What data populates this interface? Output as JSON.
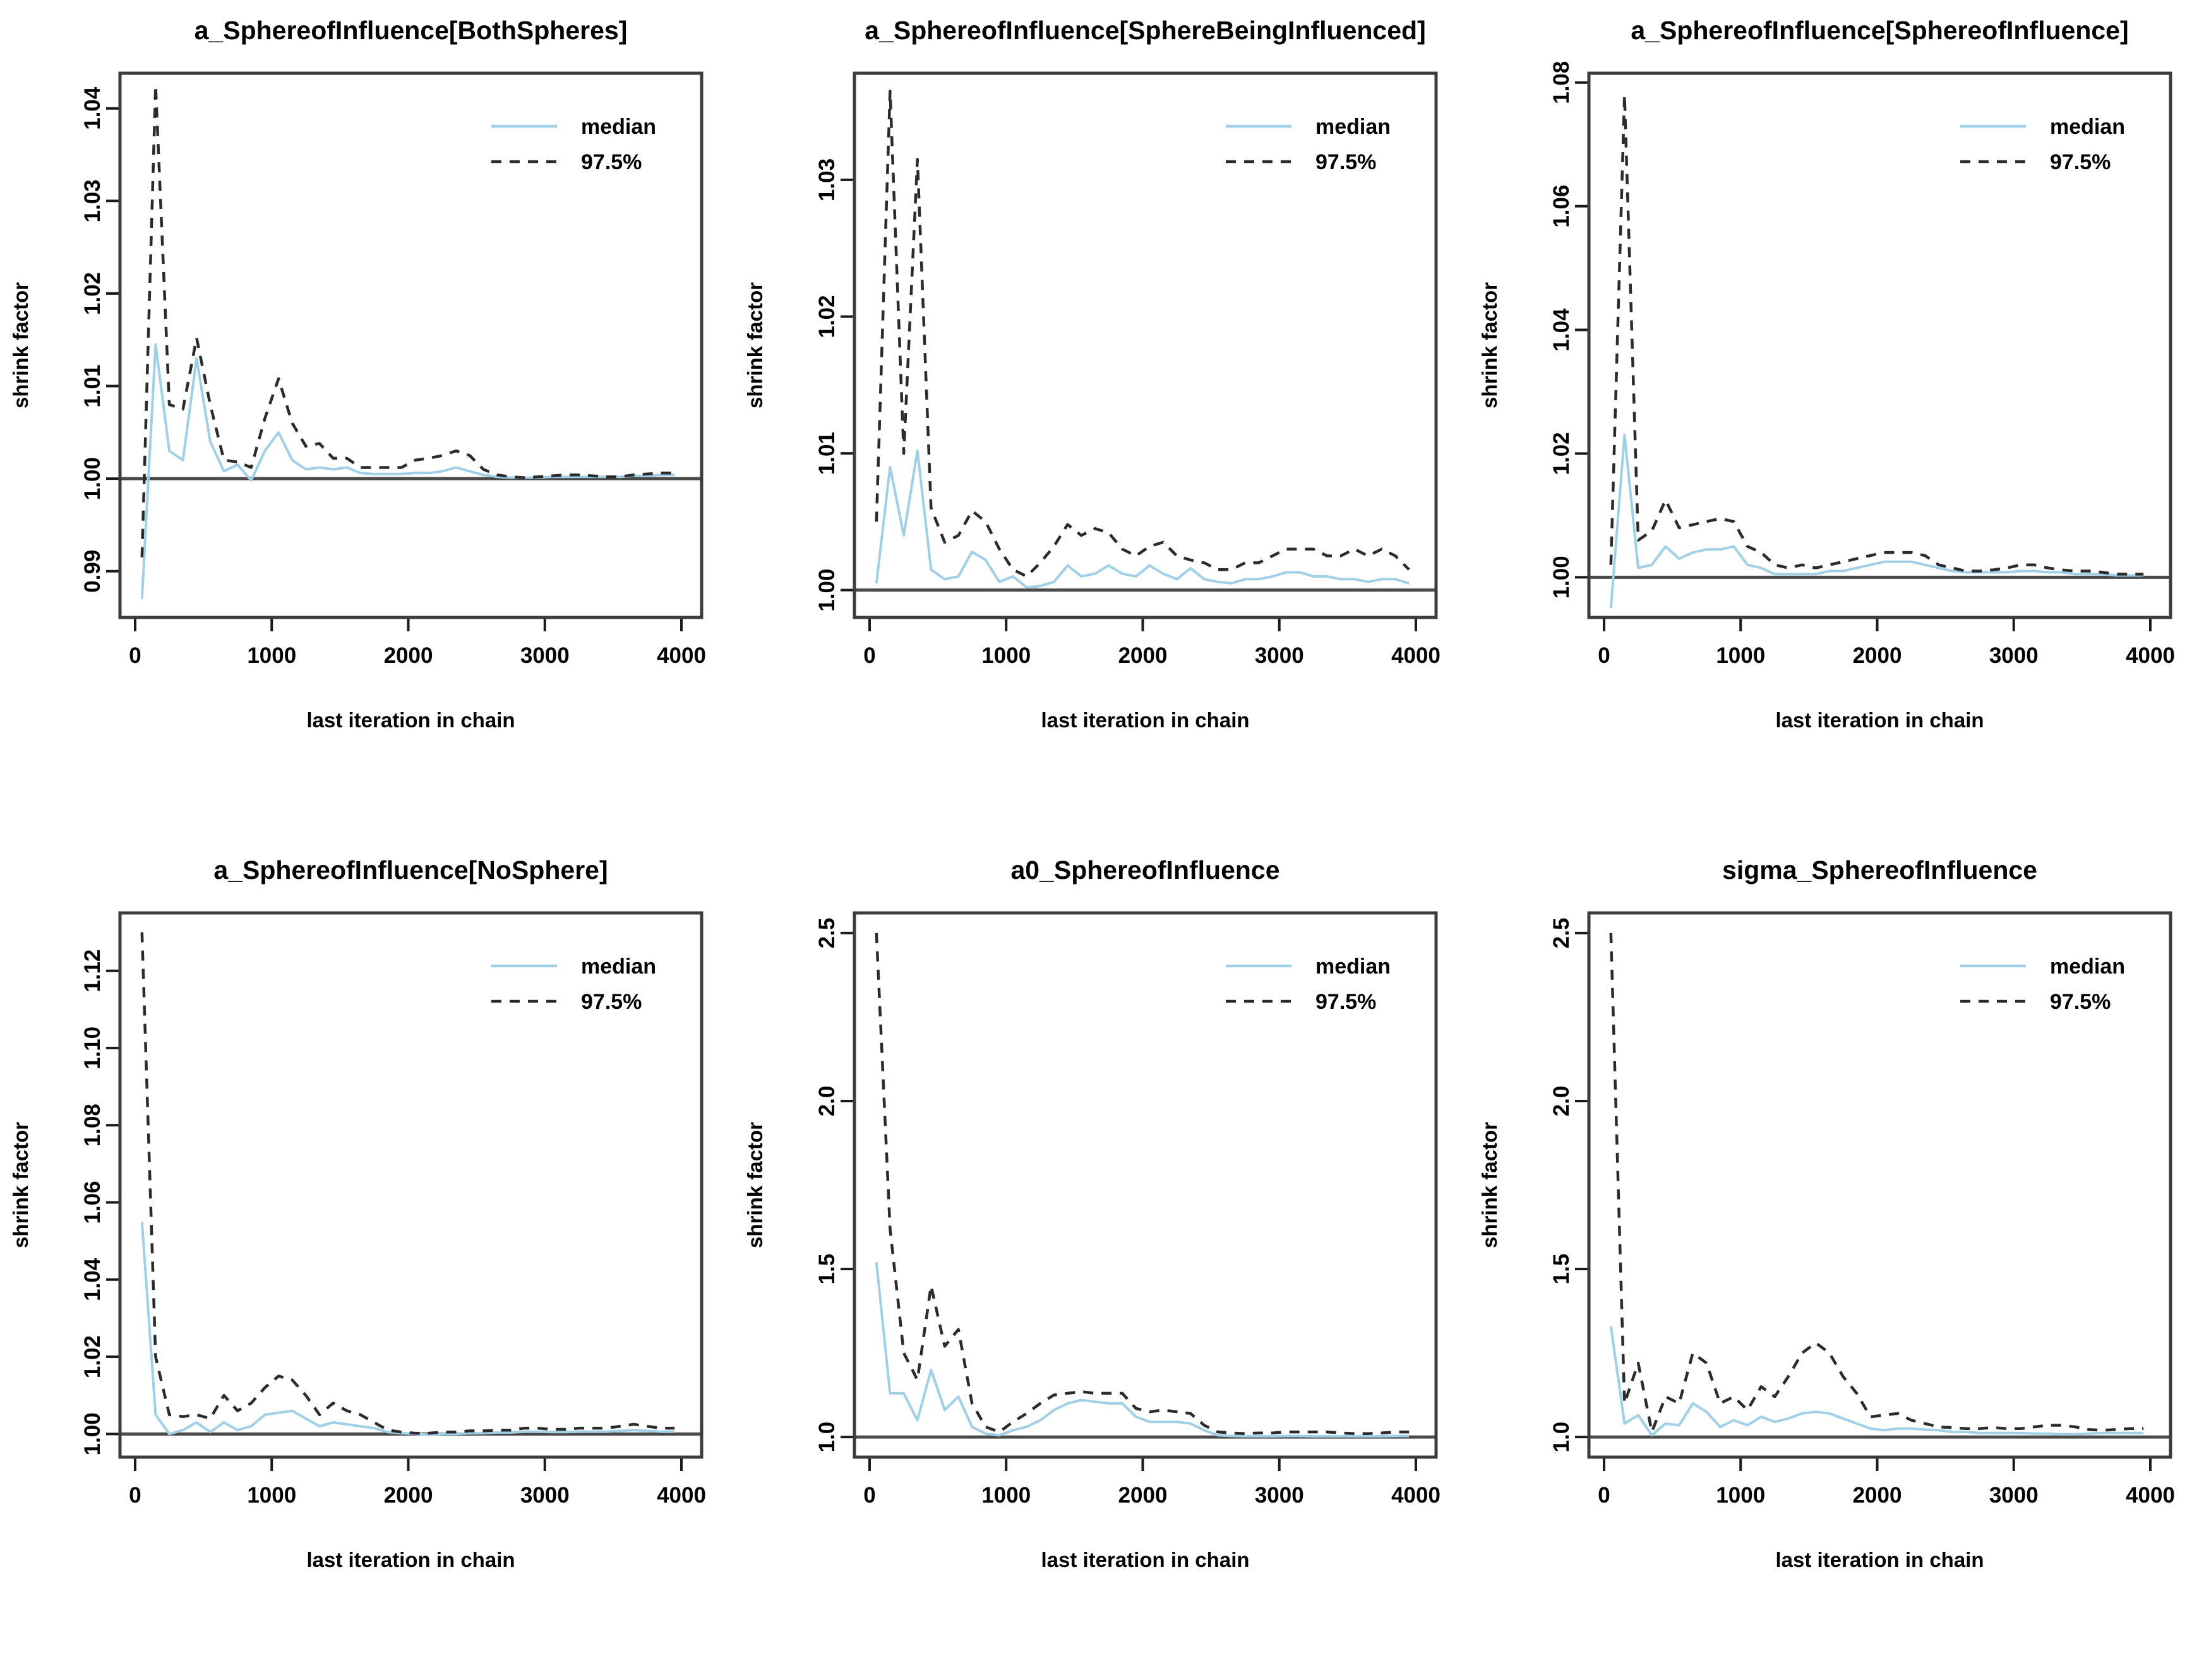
{
  "figure": {
    "background": "#ffffff",
    "x_label": "last iteration in chain",
    "y_label": "shrink factor",
    "colors": {
      "median_line": "#A0D0E8",
      "q975_line": "#2b2b2b",
      "reference_line": "#4a4a4a",
      "frame": "#3c3c3c",
      "tick": "#1a1a1a",
      "text": "#000000"
    },
    "legend": {
      "entries": [
        {
          "label": "median",
          "style": "solid"
        },
        {
          "label": "97.5%",
          "style": "dashed"
        }
      ],
      "position": "top-right"
    }
  },
  "chart_data": [
    {
      "type": "line",
      "title": "a_SphereofInfluence[BothSpheres]",
      "xlabel": "last iteration in chain",
      "ylabel": "shrink factor",
      "xlim": [
        0,
        4000
      ],
      "ylim": [
        0.985,
        1.0438
      ],
      "x_ticks": [
        0,
        1000,
        2000,
        3000,
        4000
      ],
      "x_tick_labels": [
        "0",
        "1000",
        "2000",
        "3000",
        "4000"
      ],
      "y_tick_values": [
        0.99,
        1.0,
        1.01,
        1.02,
        1.03,
        1.04
      ],
      "y_tick_labels": [
        "0.99",
        "1.00",
        "1.01",
        "1.02",
        "1.03",
        "1.04"
      ],
      "reference_y": 1.0,
      "grid": false,
      "legend_position": "top-right",
      "x": [
        50,
        150,
        250,
        350,
        450,
        550,
        650,
        750,
        850,
        950,
        1050,
        1150,
        1250,
        1350,
        1450,
        1550,
        1650,
        1750,
        1850,
        1950,
        2050,
        2150,
        2250,
        2350,
        2450,
        2550,
        2650,
        2750,
        2850,
        2950,
        3050,
        3150,
        3250,
        3350,
        3450,
        3550,
        3650,
        3750,
        3850,
        3950
      ],
      "series": [
        {
          "name": "median",
          "style": "solid",
          "values": [
            0.987,
            1.0145,
            1.003,
            1.002,
            1.013,
            1.004,
            1.0008,
            1.0015,
            0.9998,
            1.003,
            1.005,
            1.002,
            1.001,
            1.0012,
            1.001,
            1.0012,
            1.0006,
            1.0005,
            1.0005,
            1.0005,
            1.0006,
            1.0006,
            1.0008,
            1.0012,
            1.0008,
            1.0004,
            1.0002,
            1.0001,
            1.0001,
            1.0001,
            1.0002,
            1.0002,
            1.0002,
            1.0002,
            1.0002,
            1.0002,
            1.0003,
            1.0003,
            1.0004,
            1.0004
          ]
        },
        {
          "name": "97.5%",
          "style": "dashed",
          "values": [
            0.9915,
            1.0425,
            1.008,
            1.0075,
            1.0152,
            1.008,
            1.002,
            1.0018,
            1.0012,
            1.0065,
            1.0108,
            1.006,
            1.0035,
            1.0038,
            1.0022,
            1.0022,
            1.0012,
            1.0012,
            1.0012,
            1.0012,
            1.002,
            1.0022,
            1.0025,
            1.003,
            1.0025,
            1.001,
            1.0004,
            1.0002,
            1.0001,
            1.0002,
            1.0003,
            1.0004,
            1.0004,
            1.0003,
            1.0002,
            1.0002,
            1.0004,
            1.0005,
            1.0006,
            1.0006
          ]
        }
      ]
    },
    {
      "type": "line",
      "title": "a_SphereofInfluence[SphereBeingInfluenced]",
      "xlabel": "last iteration in chain",
      "ylabel": "shrink factor",
      "xlim": [
        0,
        4000
      ],
      "ylim": [
        0.998,
        1.0378
      ],
      "x_ticks": [
        0,
        1000,
        2000,
        3000,
        4000
      ],
      "x_tick_labels": [
        "0",
        "1000",
        "2000",
        "3000",
        "4000"
      ],
      "y_tick_values": [
        1.0,
        1.01,
        1.02,
        1.03
      ],
      "y_tick_labels": [
        "1.00",
        "1.01",
        "1.02",
        "1.03"
      ],
      "reference_y": 1.0,
      "grid": false,
      "legend_position": "top-right",
      "x": [
        50,
        150,
        250,
        350,
        450,
        550,
        650,
        750,
        850,
        950,
        1050,
        1150,
        1250,
        1350,
        1450,
        1550,
        1650,
        1750,
        1850,
        1950,
        2050,
        2150,
        2250,
        2350,
        2450,
        2550,
        2650,
        2750,
        2850,
        2950,
        3050,
        3150,
        3250,
        3350,
        3450,
        3550,
        3650,
        3750,
        3850,
        3950
      ],
      "series": [
        {
          "name": "median",
          "style": "solid",
          "values": [
            1.0005,
            1.009,
            1.004,
            1.0102,
            1.0015,
            1.0008,
            1.001,
            1.0028,
            1.0022,
            1.0006,
            1.001,
            1.0002,
            1.0003,
            1.0006,
            1.0018,
            1.001,
            1.0012,
            1.0018,
            1.0012,
            1.001,
            1.0018,
            1.0012,
            1.0008,
            1.0016,
            1.0008,
            1.0006,
            1.0005,
            1.0008,
            1.0008,
            1.001,
            1.0013,
            1.0013,
            1.001,
            1.001,
            1.0008,
            1.0008,
            1.0006,
            1.0008,
            1.0008,
            1.0005
          ]
        },
        {
          "name": "97.5%",
          "style": "dashed",
          "values": [
            1.005,
            1.0365,
            1.01,
            1.0315,
            1.006,
            1.0035,
            1.004,
            1.0058,
            1.005,
            1.003,
            1.0015,
            1.001,
            1.002,
            1.0032,
            1.0048,
            1.004,
            1.0045,
            1.0042,
            1.003,
            1.0025,
            1.0032,
            1.0035,
            1.0025,
            1.0022,
            1.002,
            1.0015,
            1.0015,
            1.002,
            1.002,
            1.0025,
            1.003,
            1.003,
            1.003,
            1.0025,
            1.0025,
            1.003,
            1.0025,
            1.003,
            1.0025,
            1.0015
          ]
        }
      ]
    },
    {
      "type": "line",
      "title": "a_SphereofInfluence[SphereofInfluence]",
      "xlabel": "last iteration in chain",
      "ylabel": "shrink factor",
      "xlim": [
        0,
        4000
      ],
      "ylim": [
        0.9935,
        1.0815
      ],
      "x_ticks": [
        0,
        1000,
        2000,
        3000,
        4000
      ],
      "x_tick_labels": [
        "0",
        "1000",
        "2000",
        "3000",
        "4000"
      ],
      "y_tick_values": [
        1.0,
        1.02,
        1.04,
        1.06,
        1.08
      ],
      "y_tick_labels": [
        "1.00",
        "1.02",
        "1.04",
        "1.06",
        "1.08"
      ],
      "reference_y": 1.0,
      "grid": false,
      "legend_position": "top-right",
      "x": [
        50,
        150,
        250,
        350,
        450,
        550,
        650,
        750,
        850,
        950,
        1050,
        1150,
        1250,
        1350,
        1450,
        1550,
        1650,
        1750,
        1850,
        1950,
        2050,
        2150,
        2250,
        2350,
        2450,
        2550,
        2650,
        2750,
        2850,
        2950,
        3050,
        3150,
        3250,
        3350,
        3450,
        3550,
        3650,
        3750,
        3850,
        3950
      ],
      "series": [
        {
          "name": "median",
          "style": "solid",
          "values": [
            0.995,
            1.023,
            1.0015,
            1.002,
            1.005,
            1.003,
            1.004,
            1.0045,
            1.0045,
            1.005,
            1.002,
            1.0015,
            1.0005,
            1.0005,
            1.0005,
            1.0005,
            1.001,
            1.001,
            1.0015,
            1.002,
            1.0025,
            1.0025,
            1.0025,
            1.002,
            1.0015,
            1.001,
            1.0008,
            1.0008,
            1.0008,
            1.0008,
            1.001,
            1.001,
            1.0008,
            1.0008,
            1.0005,
            1.0005,
            1.0005,
            1.0003,
            1.0003,
            1.0003
          ]
        },
        {
          "name": "97.5%",
          "style": "dashed",
          "values": [
            1.002,
            1.078,
            1.006,
            1.0075,
            1.0125,
            1.008,
            1.0085,
            1.009,
            1.0095,
            1.009,
            1.005,
            1.004,
            1.002,
            1.0015,
            1.002,
            1.0015,
            1.002,
            1.0025,
            1.003,
            1.0035,
            1.004,
            1.004,
            1.004,
            1.0035,
            1.002,
            1.0015,
            1.001,
            1.001,
            1.0012,
            1.0015,
            1.002,
            1.002,
            1.0015,
            1.0012,
            1.001,
            1.001,
            1.0008,
            1.0005,
            1.0005,
            1.0005
          ]
        }
      ]
    },
    {
      "type": "line",
      "title": "a_SphereofInfluence[NoSphere]",
      "xlabel": "last iteration in chain",
      "ylabel": "shrink factor",
      "xlim": [
        0,
        4000
      ],
      "ylim": [
        0.994,
        1.135
      ],
      "x_ticks": [
        0,
        1000,
        2000,
        3000,
        4000
      ],
      "x_tick_labels": [
        "0",
        "1000",
        "2000",
        "3000",
        "4000"
      ],
      "y_tick_values": [
        1.0,
        1.02,
        1.04,
        1.06,
        1.08,
        1.1,
        1.12
      ],
      "y_tick_labels": [
        "1.00",
        "1.02",
        "1.04",
        "1.06",
        "1.08",
        "1.10",
        "1.12"
      ],
      "reference_y": 1.0,
      "grid": false,
      "legend_position": "top-right",
      "x": [
        50,
        150,
        250,
        350,
        450,
        550,
        650,
        750,
        850,
        950,
        1050,
        1150,
        1250,
        1350,
        1450,
        1550,
        1650,
        1750,
        1850,
        1950,
        2050,
        2150,
        2250,
        2350,
        2450,
        2550,
        2650,
        2750,
        2850,
        2950,
        3050,
        3150,
        3250,
        3350,
        3450,
        3550,
        3650,
        3750,
        3850,
        3950
      ],
      "series": [
        {
          "name": "median",
          "style": "solid",
          "values": [
            1.055,
            1.005,
            1.0,
            1.001,
            1.003,
            1.0005,
            1.003,
            1.001,
            1.002,
            1.005,
            1.0055,
            1.006,
            1.004,
            1.002,
            1.003,
            1.0025,
            1.002,
            1.0015,
            1.0005,
            1.0002,
            1.0,
            0.9998,
            1.0,
            1.0,
            1.0002,
            1.0002,
            1.0004,
            1.0004,
            1.0006,
            1.0006,
            1.0005,
            1.0005,
            1.0006,
            1.0006,
            1.0006,
            1.0008,
            1.001,
            1.0008,
            1.0006,
            1.0006
          ]
        },
        {
          "name": "97.5%",
          "style": "dashed",
          "values": [
            1.13,
            1.02,
            1.005,
            1.0045,
            1.005,
            1.004,
            1.01,
            1.006,
            1.008,
            1.012,
            1.015,
            1.014,
            1.01,
            1.005,
            1.008,
            1.006,
            1.005,
            1.003,
            1.001,
            1.0005,
            1.0002,
            1.0002,
            1.0005,
            1.0005,
            1.0008,
            1.0008,
            1.001,
            1.001,
            1.0015,
            1.0015,
            1.0012,
            1.0012,
            1.0015,
            1.0015,
            1.0015,
            1.002,
            1.0025,
            1.002,
            1.0015,
            1.0015
          ]
        }
      ]
    },
    {
      "type": "line",
      "title": "a0_SphereofInfluence",
      "xlabel": "last iteration in chain",
      "ylabel": "shrink factor",
      "xlim": [
        0,
        4000
      ],
      "ylim": [
        0.94,
        2.56
      ],
      "x_ticks": [
        0,
        1000,
        2000,
        3000,
        4000
      ],
      "x_tick_labels": [
        "0",
        "1000",
        "2000",
        "3000",
        "4000"
      ],
      "y_tick_values": [
        1.0,
        1.5,
        2.0,
        2.5
      ],
      "y_tick_labels": [
        "1.0",
        "1.5",
        "2.0",
        "2.5"
      ],
      "reference_y": 1.0,
      "grid": false,
      "legend_position": "top-right",
      "x": [
        50,
        150,
        250,
        350,
        450,
        550,
        650,
        750,
        850,
        950,
        1050,
        1150,
        1250,
        1350,
        1450,
        1550,
        1650,
        1750,
        1850,
        1950,
        2050,
        2150,
        2250,
        2350,
        2450,
        2550,
        2650,
        2750,
        2850,
        2950,
        3050,
        3150,
        3250,
        3350,
        3450,
        3550,
        3650,
        3750,
        3850,
        3950
      ],
      "series": [
        {
          "name": "median",
          "style": "solid",
          "values": [
            1.52,
            1.13,
            1.13,
            1.05,
            1.2,
            1.08,
            1.12,
            1.03,
            1.01,
            1.005,
            1.02,
            1.03,
            1.05,
            1.08,
            1.1,
            1.11,
            1.105,
            1.1,
            1.1,
            1.06,
            1.045,
            1.045,
            1.045,
            1.04,
            1.02,
            1.005,
            1.003,
            1.002,
            1.002,
            1.002,
            1.003,
            1.003,
            1.002,
            1.002,
            1.002,
            1.002,
            1.002,
            1.002,
            1.003,
            1.003
          ]
        },
        {
          "name": "97.5%",
          "style": "dashed",
          "values": [
            2.5,
            1.62,
            1.25,
            1.17,
            1.45,
            1.27,
            1.32,
            1.1,
            1.03,
            1.015,
            1.045,
            1.07,
            1.1,
            1.125,
            1.13,
            1.135,
            1.13,
            1.13,
            1.13,
            1.085,
            1.075,
            1.08,
            1.075,
            1.07,
            1.035,
            1.015,
            1.012,
            1.01,
            1.012,
            1.012,
            1.015,
            1.015,
            1.015,
            1.015,
            1.012,
            1.01,
            1.01,
            1.012,
            1.015,
            1.015
          ]
        }
      ]
    },
    {
      "type": "line",
      "title": "sigma_SphereofInfluence",
      "xlabel": "last iteration in chain",
      "ylabel": "shrink factor",
      "xlim": [
        0,
        4000
      ],
      "ylim": [
        0.94,
        2.56
      ],
      "x_ticks": [
        0,
        1000,
        2000,
        3000,
        4000
      ],
      "x_tick_labels": [
        "0",
        "1000",
        "2000",
        "3000",
        "4000"
      ],
      "y_tick_values": [
        1.0,
        1.5,
        2.0,
        2.5
      ],
      "y_tick_labels": [
        "1.0",
        "1.5",
        "2.0",
        "2.5"
      ],
      "reference_y": 1.0,
      "grid": false,
      "legend_position": "top-right",
      "x": [
        50,
        150,
        250,
        350,
        450,
        550,
        650,
        750,
        850,
        950,
        1050,
        1150,
        1250,
        1350,
        1450,
        1550,
        1650,
        1750,
        1850,
        1950,
        2050,
        2150,
        2250,
        2350,
        2450,
        2550,
        2650,
        2750,
        2850,
        2950,
        3050,
        3150,
        3250,
        3350,
        3450,
        3550,
        3650,
        3750,
        3850,
        3950
      ],
      "series": [
        {
          "name": "median",
          "style": "solid",
          "values": [
            1.33,
            1.04,
            1.065,
            1.005,
            1.04,
            1.035,
            1.1,
            1.075,
            1.03,
            1.05,
            1.035,
            1.06,
            1.045,
            1.055,
            1.07,
            1.075,
            1.07,
            1.055,
            1.04,
            1.025,
            1.02,
            1.025,
            1.025,
            1.022,
            1.02,
            1.015,
            1.015,
            1.012,
            1.012,
            1.012,
            1.012,
            1.01,
            1.01,
            1.008,
            1.008,
            1.01,
            1.012,
            1.012,
            1.012,
            1.012
          ]
        },
        {
          "name": "97.5%",
          "style": "dashed",
          "values": [
            2.5,
            1.1,
            1.22,
            1.015,
            1.12,
            1.1,
            1.25,
            1.22,
            1.1,
            1.12,
            1.08,
            1.15,
            1.12,
            1.18,
            1.25,
            1.28,
            1.25,
            1.18,
            1.13,
            1.06,
            1.065,
            1.07,
            1.05,
            1.04,
            1.03,
            1.028,
            1.025,
            1.025,
            1.028,
            1.025,
            1.025,
            1.03,
            1.035,
            1.035,
            1.03,
            1.022,
            1.02,
            1.022,
            1.025,
            1.025
          ]
        }
      ]
    }
  ]
}
